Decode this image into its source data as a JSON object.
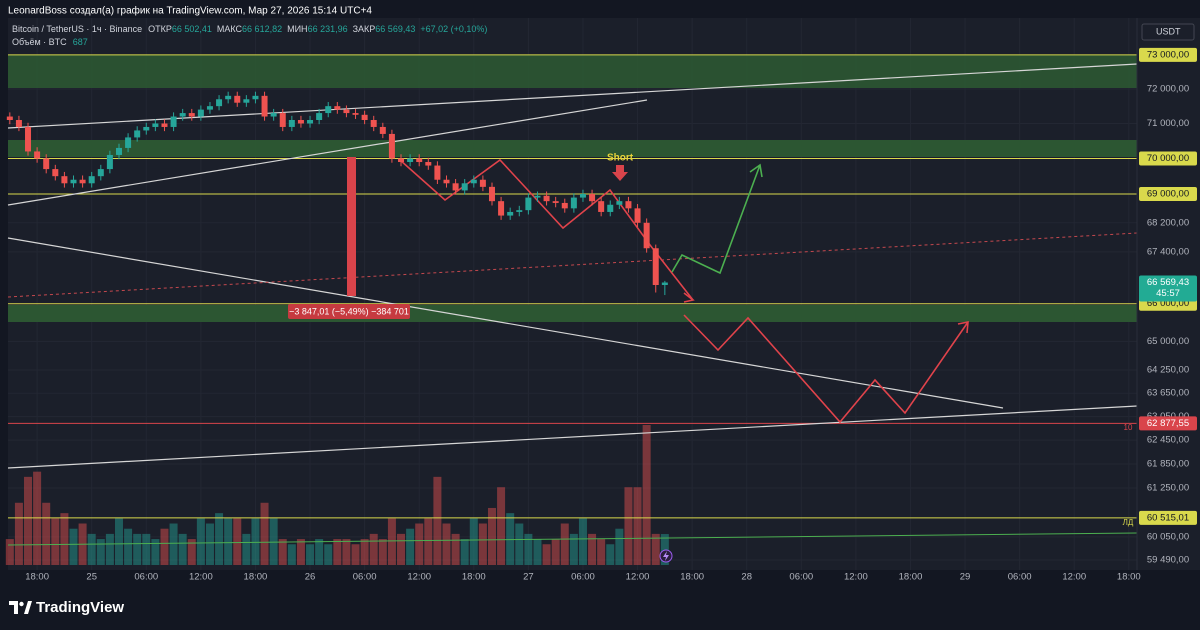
{
  "header": {
    "text": "LeonardBoss создал(а) график на TradingView.com, Мар 27, 2026 15:14 UTC+4"
  },
  "chart_data": {
    "type": "candlestick",
    "title": "Bitcoin / TetherUS · 1ч · Binance",
    "legend": {
      "open_label": "ОТКР",
      "open": "66 502,41",
      "high_label": "МАКС",
      "high": "66 612,82",
      "low_label": "МИН",
      "low": "66 231,96",
      "close_label": "ЗАКР",
      "close": "66 569,43",
      "change": "+67,02 (+0,10%)"
    },
    "volume_title": "Объём · BTC",
    "volume_label": "687",
    "currency": "USDT",
    "x": [
      0,
      1,
      2,
      3,
      4,
      5,
      6,
      7,
      8,
      9,
      10,
      11,
      12,
      13,
      14,
      15,
      16,
      17,
      18,
      19,
      20,
      21,
      22,
      23,
      24,
      25,
      26,
      27,
      28,
      29,
      30,
      31,
      32,
      33,
      34,
      35,
      36,
      37,
      38,
      39,
      40,
      41,
      42,
      43,
      44,
      45,
      46,
      47,
      48,
      49,
      50,
      51,
      52,
      53,
      54,
      55,
      56,
      57,
      58,
      59,
      60,
      61,
      62,
      63,
      64,
      65,
      66,
      67,
      68,
      69,
      70,
      71,
      72
    ],
    "open": [
      71200,
      71100,
      70900,
      70200,
      70000,
      69700,
      69500,
      69300,
      69400,
      69300,
      69500,
      69700,
      70100,
      70300,
      70600,
      70800,
      70900,
      71000,
      70900,
      71200,
      71300,
      71200,
      71400,
      71500,
      71700,
      71800,
      71600,
      71700,
      71800,
      71200,
      71300,
      70900,
      71100,
      71000,
      71100,
      71300,
      71500,
      71400,
      71300,
      71250,
      71100,
      70900,
      70700,
      70000,
      69900,
      70000,
      69900,
      69800,
      69400,
      69300,
      69100,
      69300,
      69400,
      69200,
      68800,
      68400,
      68500,
      68550,
      68900,
      68950,
      68800,
      68750,
      68600,
      68900,
      69000,
      68800,
      68500,
      68700,
      68800,
      68600,
      68200,
      67500,
      66502.41
    ],
    "high": [
      71320,
      71220,
      71020,
      70320,
      70120,
      69820,
      69620,
      69520,
      69520,
      69620,
      69820,
      70220,
      70420,
      70720,
      70920,
      71020,
      71120,
      71120,
      71320,
      71420,
      71420,
      71520,
      71620,
      71820,
      71920,
      71920,
      71820,
      71920,
      71920,
      71420,
      71420,
      71220,
      71220,
      71220,
      71420,
      71620,
      71620,
      71520,
      71420,
      71370,
      71220,
      71020,
      70820,
      70120,
      70120,
      70120,
      70020,
      69920,
      69520,
      69420,
      69420,
      69520,
      69520,
      69320,
      68920,
      68620,
      68670,
      69020,
      69070,
      69070,
      68920,
      68870,
      69020,
      69120,
      69120,
      68920,
      68820,
      68920,
      68920,
      68720,
      68320,
      67600,
      66612.82
    ],
    "low": [
      70980,
      70780,
      70080,
      69880,
      69580,
      69380,
      69180,
      69180,
      69180,
      69180,
      69380,
      69580,
      69980,
      70180,
      70480,
      70680,
      70780,
      70780,
      70780,
      71080,
      71080,
      71080,
      71280,
      71380,
      71580,
      71480,
      71480,
      71580,
      71080,
      71080,
      70780,
      70780,
      70880,
      70880,
      70980,
      71180,
      71280,
      71180,
      71130,
      70980,
      70780,
      70580,
      69880,
      69780,
      69780,
      69780,
      69680,
      69280,
      69180,
      68980,
      68980,
      69180,
      69080,
      68680,
      68280,
      68280,
      68380,
      68430,
      68780,
      68680,
      68630,
      68480,
      68480,
      68780,
      68680,
      68380,
      68380,
      68580,
      68480,
      68080,
      67380,
      66300,
      66231.96
    ],
    "close": [
      71100,
      70900,
      70200,
      70000,
      69700,
      69500,
      69300,
      69400,
      69300,
      69500,
      69700,
      70100,
      70300,
      70600,
      70800,
      70900,
      71000,
      70900,
      71200,
      71300,
      71200,
      71400,
      71500,
      71700,
      71800,
      71600,
      71700,
      71800,
      71200,
      71300,
      70900,
      71100,
      71000,
      71100,
      71300,
      71500,
      71400,
      71300,
      71250,
      71100,
      70900,
      70700,
      70000,
      69900,
      70000,
      69900,
      69800,
      69400,
      69300,
      69100,
      69300,
      69400,
      69200,
      68800,
      68400,
      68500,
      68550,
      68900,
      68950,
      68800,
      68750,
      68600,
      68900,
      69000,
      68800,
      68500,
      68700,
      68800,
      68600,
      68200,
      67500,
      66502.41,
      66569.43
    ],
    "volume": [
      575,
      1380,
      1955,
      2070,
      1380,
      1035,
      1150,
      805,
      920,
      690,
      575,
      690,
      1035,
      805,
      690,
      690,
      575,
      805,
      920,
      690,
      575,
      1035,
      920,
      1150,
      1035,
      1035,
      690,
      1035,
      1380,
      1035,
      575,
      460,
      575,
      460,
      575,
      460,
      575,
      575,
      460,
      575,
      690,
      575,
      1035,
      690,
      805,
      920,
      1035,
      1955,
      920,
      690,
      575,
      1035,
      920,
      1265,
      1725,
      1150,
      920,
      690,
      575,
      460,
      575,
      920,
      690,
      1035,
      690,
      575,
      460,
      805,
      1725,
      1725,
      3105,
      690,
      687
    ],
    "up_color": "#26a69a",
    "down_color": "#ef5350",
    "log_scale": true,
    "grid": true,
    "xlim": [
      -0.2,
      123.9
    ],
    "xticks": [
      {
        "value": 3,
        "label": "18:00"
      },
      {
        "value": 9,
        "label": "25"
      },
      {
        "value": 15,
        "label": "06:00"
      },
      {
        "value": 21,
        "label": "12:00"
      },
      {
        "value": 27,
        "label": "18:00"
      },
      {
        "value": 33,
        "label": "26"
      },
      {
        "value": 39,
        "label": "06:00"
      },
      {
        "value": 45,
        "label": "12:00"
      },
      {
        "value": 51,
        "label": "18:00"
      },
      {
        "value": 57,
        "label": "27"
      },
      {
        "value": 63,
        "label": "06:00"
      },
      {
        "value": 69,
        "label": "12:00"
      },
      {
        "value": 75,
        "label": "18:00"
      },
      {
        "value": 81,
        "label": "28"
      },
      {
        "value": 87,
        "label": "06:00"
      },
      {
        "value": 93,
        "label": "12:00"
      },
      {
        "value": 99,
        "label": "18:00"
      },
      {
        "value": 105,
        "label": "29"
      },
      {
        "value": 111,
        "label": "06:00"
      },
      {
        "value": 117,
        "label": "12:00"
      },
      {
        "value": 123,
        "label": "18:00"
      }
    ],
    "ylim": [
      59250,
      73980
    ],
    "yticks": [
      {
        "value": 72000,
        "label": "72 000,00"
      },
      {
        "value": 71000,
        "label": "71 000,00"
      },
      {
        "value": 68200,
        "label": "68 200,00"
      },
      {
        "value": 67400,
        "label": "67 400,00"
      },
      {
        "value": 65000,
        "label": "65 000,00"
      },
      {
        "value": 64250,
        "label": "64 250,00"
      },
      {
        "value": 63650,
        "label": "63 650,00"
      },
      {
        "value": 63050,
        "label": "63 050,00"
      },
      {
        "value": 62450,
        "label": "62 450,00"
      },
      {
        "value": 61850,
        "label": "61 850,00"
      },
      {
        "value": 61250,
        "label": "61 250,00"
      },
      {
        "value": 60050,
        "label": "60 050,00"
      },
      {
        "value": 59490,
        "label": "59 490,00"
      }
    ],
    "levels": [
      {
        "value": 73000,
        "label": "73 000,00",
        "color": "#d9d94c",
        "text_color": "#131722"
      },
      {
        "value": 70000,
        "label": "70 000,00",
        "color": "#d9d94c",
        "text_color": "#131722"
      },
      {
        "value": 69000,
        "label": "69 000,00",
        "color": "#d9d94c",
        "text_color": "#131722"
      },
      {
        "value": 66000,
        "label": "66 000,00",
        "color": "#d9d94c",
        "text_color": "#131722"
      },
      {
        "value": 62877.55,
        "label": "62 877,55",
        "color": "#d9444b",
        "text_color": "#ffffff"
      },
      {
        "value": 60515.01,
        "label": "60 515,01",
        "color": "#d9d94c",
        "text_color": "#131722"
      }
    ],
    "last_price": {
      "value": 66569.43,
      "label": "66 569,43",
      "countdown": "45:57",
      "color": "#22ab94"
    },
    "annotations": {
      "short": "Short",
      "measure": "−3 847,01 (−5,49%) −384 701",
      "marker_10": "10",
      "marker_ld": "ЛД"
    }
  },
  "footer": {
    "brand": "TradingView"
  }
}
